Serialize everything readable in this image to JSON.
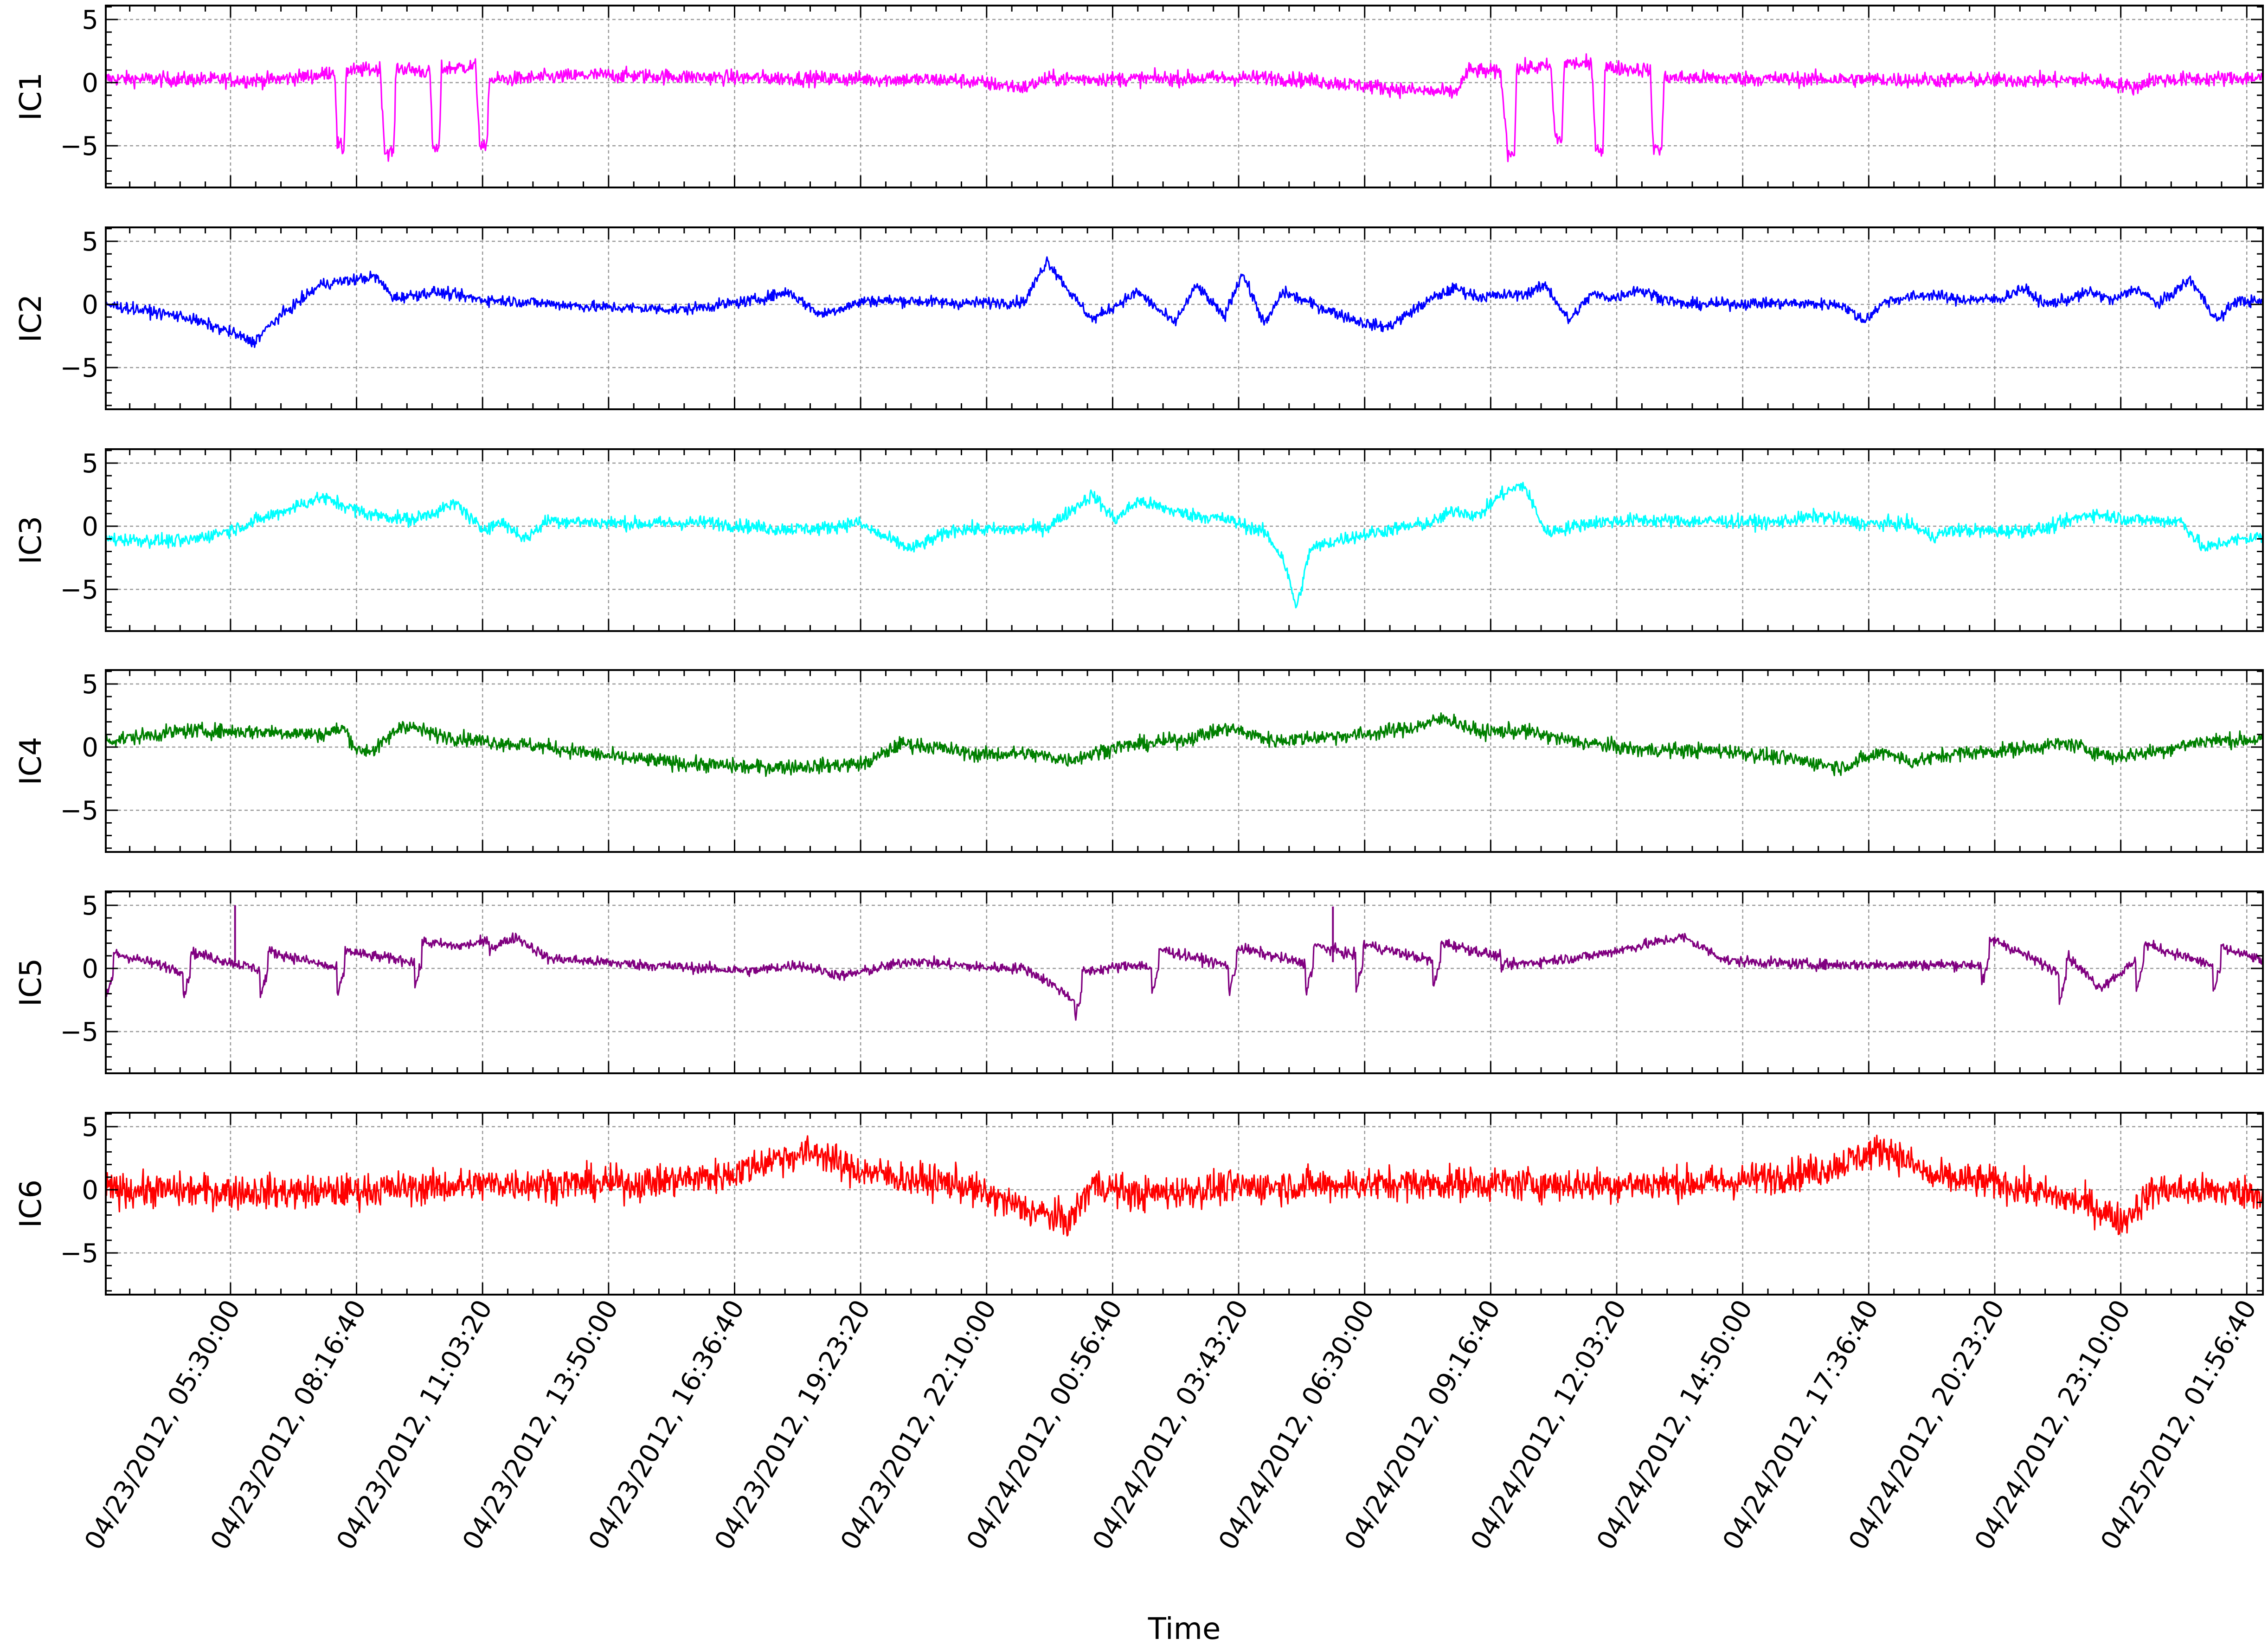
{
  "chart_data": {
    "type": "line",
    "xlabel": "Time",
    "x_tick_labels": [
      "04/23/2012, 05:30:00",
      "04/23/2012, 08:16:40",
      "04/23/2012, 11:03:20",
      "04/23/2012, 13:50:00",
      "04/23/2012, 16:36:40",
      "04/23/2012, 19:23:20",
      "04/23/2012, 22:10:00",
      "04/24/2012, 00:56:40",
      "04/24/2012, 03:43:20",
      "04/24/2012, 06:30:00",
      "04/24/2012, 09:16:40",
      "04/24/2012, 12:03:20",
      "04/24/2012, 14:50:00",
      "04/24/2012, 17:36:40",
      "04/24/2012, 20:23:20",
      "04/24/2012, 23:10:00",
      "04/25/2012, 01:56:40"
    ],
    "x_tick_hours": [
      0,
      2.7778,
      5.5556,
      8.3333,
      11.1111,
      13.8889,
      16.6667,
      19.4444,
      22.2222,
      25.0,
      27.7778,
      30.5556,
      33.3333,
      36.1111,
      38.8889,
      41.6667,
      44.4444
    ],
    "x_range_hours": [
      -2.75,
      44.8
    ],
    "ylim": [
      -8.3,
      6.1
    ],
    "y_ticks": [
      5,
      0,
      -5
    ],
    "grid": true,
    "panels": [
      {
        "ylabel": "IC1",
        "color": "#ff00ff",
        "noise": 0.42,
        "points": [
          [
            -2.75,
            0.3
          ],
          [
            0.8,
            0.2
          ],
          [
            2.0,
            0.6
          ],
          [
            2.3,
            1.0
          ],
          [
            2.35,
            -4.8
          ],
          [
            2.5,
            -5.4
          ],
          [
            2.55,
            0.9
          ],
          [
            3.3,
            1.1
          ],
          [
            3.4,
            -5.5
          ],
          [
            3.6,
            -5.5
          ],
          [
            3.65,
            1.2
          ],
          [
            4.4,
            0.8
          ],
          [
            4.45,
            -5.1
          ],
          [
            4.6,
            -5.4
          ],
          [
            4.65,
            1.1
          ],
          [
            5.4,
            1.3
          ],
          [
            5.5,
            -5.0
          ],
          [
            5.65,
            -5.3
          ],
          [
            5.7,
            0.2
          ],
          [
            8.0,
            0.6
          ],
          [
            11.0,
            0.4
          ],
          [
            16.0,
            0.2
          ],
          [
            17.5,
            -0.4
          ],
          [
            18.0,
            0.3
          ],
          [
            20.0,
            0.3
          ],
          [
            23.0,
            0.4
          ],
          [
            24.0,
            0.1
          ],
          [
            26.0,
            -0.6
          ],
          [
            27.0,
            -0.8
          ],
          [
            27.3,
            1.0
          ],
          [
            28.0,
            0.8
          ],
          [
            28.15,
            -5.5
          ],
          [
            28.3,
            -5.6
          ],
          [
            28.35,
            1.1
          ],
          [
            29.1,
            1.3
          ],
          [
            29.2,
            -4.4
          ],
          [
            29.35,
            -4.5
          ],
          [
            29.4,
            1.6
          ],
          [
            30.0,
            1.4
          ],
          [
            30.1,
            -5.2
          ],
          [
            30.25,
            -5.3
          ],
          [
            30.3,
            1.2
          ],
          [
            31.3,
            1.0
          ],
          [
            31.35,
            -5.0
          ],
          [
            31.55,
            -5.3
          ],
          [
            31.6,
            0.4
          ],
          [
            34.0,
            0.3
          ],
          [
            38.0,
            0.2
          ],
          [
            41.0,
            0.2
          ],
          [
            42.0,
            -0.4
          ],
          [
            42.3,
            0.2
          ],
          [
            44.8,
            0.4
          ]
        ]
      },
      {
        "ylabel": "IC2",
        "color": "#0000ff",
        "noise": 0.32,
        "points": [
          [
            -2.75,
            0.0
          ],
          [
            -1.0,
            -1.0
          ],
          [
            0.0,
            -2.2
          ],
          [
            0.5,
            -3.0
          ],
          [
            1.0,
            -1.2
          ],
          [
            2.0,
            1.6
          ],
          [
            3.2,
            2.2
          ],
          [
            3.6,
            0.5
          ],
          [
            4.5,
            1.0
          ],
          [
            5.5,
            0.4
          ],
          [
            6.5,
            0.2
          ],
          [
            8.0,
            -0.2
          ],
          [
            10.0,
            -0.4
          ],
          [
            11.5,
            0.3
          ],
          [
            12.3,
            1.0
          ],
          [
            13.0,
            -0.8
          ],
          [
            14.0,
            0.3
          ],
          [
            15.0,
            0.3
          ],
          [
            16.0,
            0.1
          ],
          [
            17.5,
            0.2
          ],
          [
            18.0,
            3.5
          ],
          [
            18.6,
            0.5
          ],
          [
            19.0,
            -1.2
          ],
          [
            20.0,
            1.0
          ],
          [
            20.8,
            -1.5
          ],
          [
            21.3,
            1.5
          ],
          [
            21.9,
            -1.0
          ],
          [
            22.3,
            2.5
          ],
          [
            22.8,
            -1.6
          ],
          [
            23.2,
            1.0
          ],
          [
            24.0,
            -0.2
          ],
          [
            25.0,
            -1.5
          ],
          [
            25.5,
            -1.8
          ],
          [
            26.5,
            0.5
          ],
          [
            27.0,
            1.3
          ],
          [
            27.5,
            0.6
          ],
          [
            28.5,
            0.8
          ],
          [
            29.0,
            1.5
          ],
          [
            29.5,
            -1.3
          ],
          [
            30.0,
            0.8
          ],
          [
            30.5,
            0.5
          ],
          [
            31.0,
            1.2
          ],
          [
            32.0,
            0.0
          ],
          [
            34.0,
            0.1
          ],
          [
            35.5,
            0.0
          ],
          [
            36.0,
            -1.3
          ],
          [
            36.5,
            0.3
          ],
          [
            37.5,
            0.8
          ],
          [
            38.0,
            0.4
          ],
          [
            39.0,
            0.4
          ],
          [
            39.5,
            1.3
          ],
          [
            40.0,
            0.0
          ],
          [
            40.5,
            0.4
          ],
          [
            41.0,
            1.0
          ],
          [
            41.5,
            0.3
          ],
          [
            42.0,
            1.3
          ],
          [
            42.5,
            0.0
          ],
          [
            43.2,
            2.0
          ],
          [
            43.8,
            -1.3
          ],
          [
            44.2,
            0.3
          ],
          [
            44.8,
            0.2
          ]
        ]
      },
      {
        "ylabel": "IC3",
        "color": "#00ffff",
        "noise": 0.38,
        "points": [
          [
            -2.75,
            -1.0
          ],
          [
            -1.0,
            -1.2
          ],
          [
            0.0,
            -0.3
          ],
          [
            1.0,
            1.0
          ],
          [
            2.0,
            2.3
          ],
          [
            3.0,
            1.0
          ],
          [
            4.0,
            0.5
          ],
          [
            5.0,
            1.8
          ],
          [
            5.5,
            -0.2
          ],
          [
            6.0,
            0.3
          ],
          [
            6.5,
            -1.0
          ],
          [
            7.0,
            0.5
          ],
          [
            8.0,
            0.3
          ],
          [
            9.0,
            0.2
          ],
          [
            10.5,
            0.3
          ],
          [
            12.0,
            -0.2
          ],
          [
            13.0,
            -0.2
          ],
          [
            13.8,
            0.3
          ],
          [
            14.5,
            -1.0
          ],
          [
            15.0,
            -1.8
          ],
          [
            15.5,
            -1.0
          ],
          [
            16.0,
            -0.2
          ],
          [
            17.0,
            -0.3
          ],
          [
            18.0,
            -0.1
          ],
          [
            19.0,
            2.5
          ],
          [
            19.5,
            0.5
          ],
          [
            20.0,
            2.0
          ],
          [
            21.0,
            1.0
          ],
          [
            22.0,
            0.5
          ],
          [
            22.8,
            -0.5
          ],
          [
            23.2,
            -2.5
          ],
          [
            23.5,
            -6.5
          ],
          [
            23.8,
            -1.8
          ],
          [
            24.5,
            -1.0
          ],
          [
            25.5,
            -0.3
          ],
          [
            26.5,
            0.3
          ],
          [
            27.0,
            1.3
          ],
          [
            27.5,
            0.8
          ],
          [
            28.0,
            2.5
          ],
          [
            28.5,
            3.3
          ],
          [
            29.0,
            -0.5
          ],
          [
            30.0,
            0.3
          ],
          [
            31.0,
            0.5
          ],
          [
            32.0,
            0.4
          ],
          [
            33.0,
            0.4
          ],
          [
            34.0,
            0.3
          ],
          [
            35.0,
            0.8
          ],
          [
            36.0,
            0.2
          ],
          [
            37.0,
            0.2
          ],
          [
            37.5,
            -0.8
          ],
          [
            38.0,
            -0.3
          ],
          [
            39.0,
            -0.4
          ],
          [
            40.0,
            -0.2
          ],
          [
            41.0,
            1.0
          ],
          [
            42.0,
            0.5
          ],
          [
            43.0,
            0.4
          ],
          [
            43.5,
            -1.8
          ],
          [
            44.0,
            -1.2
          ],
          [
            44.8,
            -0.8
          ]
        ]
      },
      {
        "ylabel": "IC4",
        "color": "#008000",
        "noise": 0.42,
        "points": [
          [
            -2.75,
            0.5
          ],
          [
            -1.0,
            1.3
          ],
          [
            1.0,
            1.2
          ],
          [
            2.0,
            1.0
          ],
          [
            2.5,
            1.5
          ],
          [
            2.8,
            -0.3
          ],
          [
            3.2,
            -0.2
          ],
          [
            3.8,
            1.8
          ],
          [
            4.5,
            1.0
          ],
          [
            5.5,
            0.5
          ],
          [
            7.0,
            0.0
          ],
          [
            8.5,
            -0.8
          ],
          [
            10.0,
            -1.3
          ],
          [
            11.5,
            -1.6
          ],
          [
            13.0,
            -1.5
          ],
          [
            14.0,
            -1.3
          ],
          [
            14.8,
            0.3
          ],
          [
            15.5,
            0.0
          ],
          [
            16.5,
            -0.6
          ],
          [
            17.5,
            -0.5
          ],
          [
            18.5,
            -1.0
          ],
          [
            19.5,
            0.0
          ],
          [
            21.0,
            0.6
          ],
          [
            22.0,
            1.5
          ],
          [
            23.0,
            0.5
          ],
          [
            24.0,
            0.8
          ],
          [
            25.0,
            1.0
          ],
          [
            26.0,
            1.5
          ],
          [
            26.8,
            2.3
          ],
          [
            27.5,
            1.2
          ],
          [
            28.5,
            1.3
          ],
          [
            29.5,
            0.5
          ],
          [
            31.0,
            -0.2
          ],
          [
            33.0,
            -0.3
          ],
          [
            34.5,
            -1.0
          ],
          [
            35.5,
            -1.6
          ],
          [
            36.5,
            -0.3
          ],
          [
            37.0,
            -1.2
          ],
          [
            38.0,
            -0.5
          ],
          [
            39.0,
            -0.3
          ],
          [
            40.5,
            0.3
          ],
          [
            41.5,
            -0.8
          ],
          [
            42.5,
            -0.3
          ],
          [
            43.5,
            0.5
          ],
          [
            44.8,
            0.6
          ]
        ]
      },
      {
        "ylabel": "IC5",
        "color": "#800080",
        "noise": 0.3,
        "sawtooth": [
          [
            -2.75,
            5.7,
            1.7
          ],
          [
            18.6,
            24.8,
            1.7
          ],
          [
            24.8,
            28.0,
            1.7
          ],
          [
            38.6,
            44.8,
            1.7
          ]
        ],
        "spikes": [
          [
            0.1,
            5.0
          ],
          [
            24.3,
            4.9
          ]
        ],
        "points": [
          [
            -2.75,
            -0.8
          ],
          [
            3.0,
            -0.5
          ],
          [
            5.0,
            0.5
          ],
          [
            6.3,
            2.5
          ],
          [
            7.0,
            0.8
          ],
          [
            9.0,
            0.3
          ],
          [
            11.5,
            -0.2
          ],
          [
            12.5,
            0.3
          ],
          [
            13.5,
            -0.6
          ],
          [
            15.0,
            0.6
          ],
          [
            16.5,
            0.1
          ],
          [
            17.5,
            0.0
          ],
          [
            18.0,
            -1.0
          ],
          [
            18.6,
            -2.5
          ],
          [
            20.0,
            -0.5
          ],
          [
            28.0,
            0.2
          ],
          [
            30.0,
            1.0
          ],
          [
            32.0,
            2.5
          ],
          [
            33.0,
            0.6
          ],
          [
            35.0,
            0.3
          ],
          [
            36.5,
            0.3
          ],
          [
            37.5,
            0.3
          ],
          [
            39.0,
            0.3
          ],
          [
            40.5,
            -1.0
          ],
          [
            41.2,
            -2.8
          ],
          [
            42.0,
            0.0
          ],
          [
            44.8,
            -0.5
          ]
        ]
      },
      {
        "ylabel": "IC6",
        "color": "#ff0000",
        "noise": 0.95,
        "points": [
          [
            -2.75,
            0.0
          ],
          [
            2.0,
            -0.2
          ],
          [
            6.0,
            0.5
          ],
          [
            9.0,
            0.5
          ],
          [
            11.0,
            1.2
          ],
          [
            12.0,
            2.5
          ],
          [
            13.0,
            3.0
          ],
          [
            13.5,
            1.8
          ],
          [
            15.0,
            0.8
          ],
          [
            16.0,
            0.5
          ],
          [
            17.5,
            -1.5
          ],
          [
            18.5,
            -2.5
          ],
          [
            19.0,
            0.5
          ],
          [
            20.0,
            -0.4
          ],
          [
            22.0,
            0.2
          ],
          [
            24.0,
            0.4
          ],
          [
            26.0,
            0.5
          ],
          [
            28.0,
            0.5
          ],
          [
            30.0,
            0.4
          ],
          [
            33.0,
            0.6
          ],
          [
            35.0,
            1.5
          ],
          [
            36.5,
            3.3
          ],
          [
            37.5,
            1.0
          ],
          [
            39.0,
            0.5
          ],
          [
            41.0,
            -1.2
          ],
          [
            41.7,
            -2.5
          ],
          [
            42.4,
            0.0
          ],
          [
            44.8,
            -0.2
          ]
        ]
      }
    ]
  }
}
